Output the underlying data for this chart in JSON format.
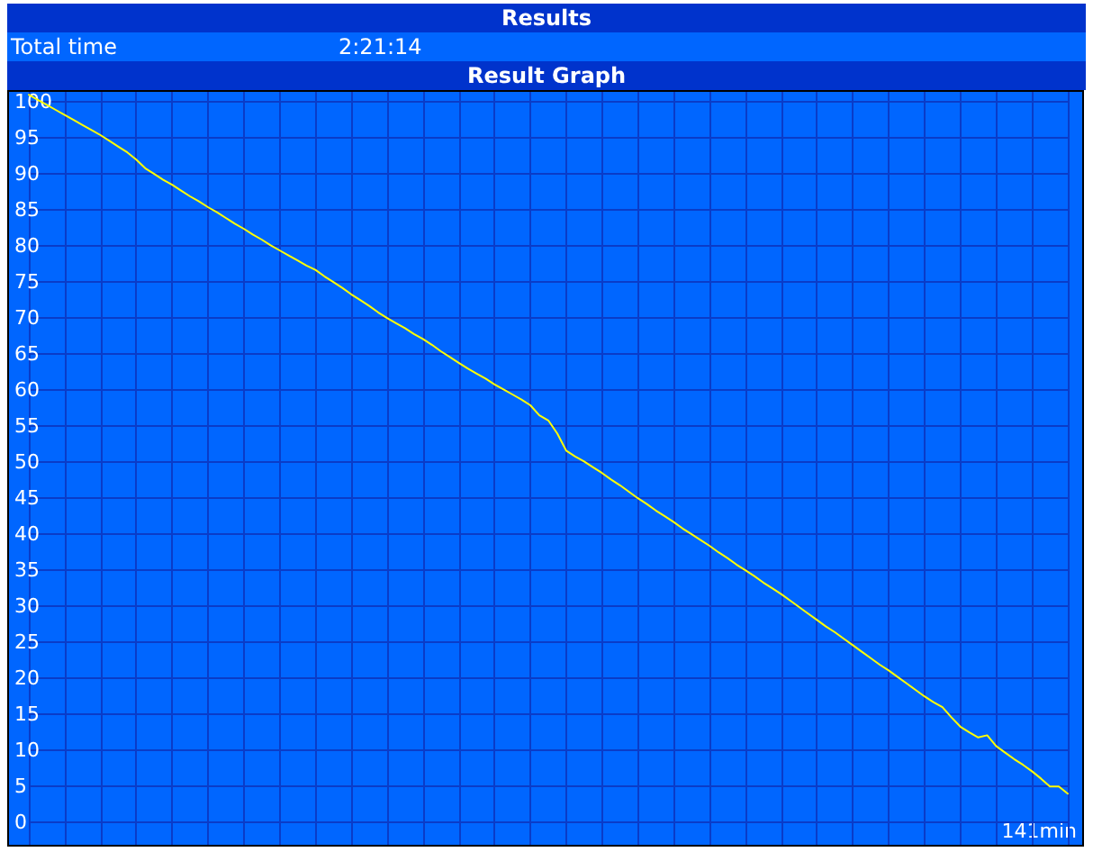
{
  "chart_data": {
    "type": "line",
    "title": "Results",
    "subtitle": "Result Graph",
    "annotations": [
      "Total time",
      "2:21:14",
      "141min"
    ],
    "categories": [
      null,
      null,
      null,
      null,
      null,
      null,
      null,
      null,
      null,
      null,
      null,
      null,
      null,
      null,
      null,
      null,
      null,
      null,
      null,
      null,
      null,
      null,
      null,
      null,
      null,
      null,
      null,
      null,
      null,
      null,
      null,
      null,
      null,
      null,
      null,
      null,
      null,
      null,
      null,
      null,
      null,
      null,
      null,
      null,
      null,
      null,
      null,
      null,
      null,
      null,
      null,
      null,
      null,
      null,
      null,
      null,
      null,
      null,
      null,
      null,
      null,
      null,
      null,
      null,
      null,
      null,
      null,
      null,
      null,
      null,
      null,
      null,
      null,
      null,
      null,
      null,
      null,
      null,
      null,
      null,
      null,
      null,
      null,
      null,
      null,
      null,
      null,
      null,
      null,
      null,
      null,
      null,
      null,
      null,
      null,
      null,
      null,
      null,
      null,
      null,
      null,
      null,
      null,
      null,
      null,
      null,
      null,
      null,
      null,
      null,
      null,
      null,
      null,
      null,
      null,
      null,
      null
    ],
    "series": [
      {
        "color": "#ffff00",
        "values": [
          101.0,
          100.3,
          99.6,
          98.9,
          98.2,
          97.5,
          96.8,
          96.1,
          95.4,
          94.6,
          93.8,
          93.0,
          92.0,
          90.8,
          90.0,
          89.2,
          88.5,
          87.7,
          86.9,
          86.2,
          85.4,
          84.7,
          83.9,
          83.1,
          82.4,
          81.6,
          80.9,
          80.1,
          79.4,
          78.7,
          78.0,
          77.3,
          76.7,
          75.8,
          75.0,
          74.2,
          73.3,
          72.5,
          71.7,
          70.8,
          70.0,
          69.3,
          68.6,
          67.8,
          67.1,
          66.3,
          65.4,
          64.6,
          63.8,
          63.0,
          62.3,
          61.6,
          60.8,
          60.1,
          59.4,
          58.7,
          57.9,
          56.5,
          55.8,
          54.0,
          51.6,
          50.8,
          50.1,
          49.3,
          48.5,
          47.6,
          46.8,
          45.9,
          45.0,
          44.2,
          43.3,
          42.5,
          41.7,
          40.8,
          40.0,
          39.2,
          38.4,
          37.5,
          36.7,
          35.8,
          35.0,
          34.2,
          33.3,
          32.5,
          31.7,
          30.8,
          29.9,
          29.0,
          28.1,
          27.2,
          26.4,
          25.5,
          24.6,
          23.7,
          22.8,
          21.9,
          21.1,
          20.2,
          19.3,
          18.4,
          17.5,
          16.7,
          16.0,
          14.6,
          13.3,
          12.5,
          11.8,
          12.1,
          10.6,
          9.7,
          8.8,
          8.0,
          7.1,
          6.1,
          5.0,
          5.0,
          4.0
        ]
      }
    ],
    "ylim": [
      -3.1,
      101.4
    ],
    "yticks": [
      0,
      5,
      10,
      15,
      20,
      25,
      30,
      35,
      40,
      45,
      50,
      55,
      60,
      65,
      70,
      75,
      80,
      85,
      90,
      95,
      100
    ],
    "grid": true
  }
}
